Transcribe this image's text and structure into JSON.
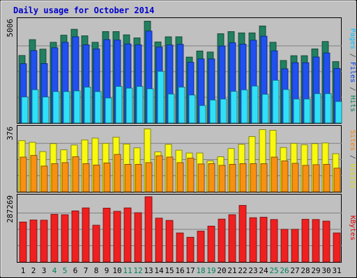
{
  "chart_data": {
    "type": "bar",
    "title": "Daily usage for October 2014",
    "days": [
      "1",
      "2",
      "3",
      "4",
      "5",
      "6",
      "7",
      "8",
      "9",
      "10",
      "11",
      "12",
      "13",
      "14",
      "15",
      "16",
      "17",
      "18",
      "19",
      "20",
      "21",
      "22",
      "23",
      "24",
      "25",
      "26",
      "27",
      "28",
      "29",
      "30",
      "31"
    ],
    "weekend_days": [
      "4",
      "5",
      "11",
      "12",
      "18",
      "19",
      "25",
      "26"
    ],
    "panels": [
      {
        "id": "top",
        "max_label": "5006",
        "ymax": 5006,
        "axis_labels": [
          {
            "text": "Pages",
            "color": "#00c0ff"
          },
          {
            "text": " / ",
            "color": "#404040"
          },
          {
            "text": "Files",
            "color": "#0040f0"
          },
          {
            "text": " / ",
            "color": "#404040"
          },
          {
            "text": "Hits",
            "color": "#00805c"
          }
        ],
        "series": [
          {
            "name": "Hits",
            "color": "#208060",
            "values": [
              3288,
              4058,
              3594,
              3930,
              4276,
              4564,
              4246,
              3930,
              4452,
              4452,
              4292,
              4142,
              4960,
              3948,
              4196,
              4196,
              3210,
              3508,
              3458,
              4346,
              4452,
              4386,
              4386,
              4724,
              3930,
              3044,
              3278,
              3278,
              3610,
              3966,
              2990
            ]
          },
          {
            "name": "Files",
            "color": "#2050f0",
            "values": [
              2884,
              3524,
              2896,
              3660,
              3928,
              4196,
              3806,
              3608,
              4060,
              4040,
              3848,
              3808,
              4476,
              3696,
              3798,
              3830,
              2956,
              3118,
              3118,
              3748,
              3908,
              3838,
              4028,
              4226,
              3514,
              2638,
              2936,
              2936,
              3214,
              3410,
              2658
            ]
          },
          {
            "name": "Pages",
            "color": "#30e0f8",
            "values": [
              1266,
              1620,
              1266,
              1528,
              1528,
              1562,
              1746,
              1528,
              1216,
              1778,
              1696,
              1778,
              1664,
              2512,
              1410,
              1746,
              1360,
              848,
              1118,
              1168,
              1542,
              1612,
              1796,
              1396,
              2080,
              1626,
              1168,
              1168,
              1426,
              1426,
              1046
            ]
          }
        ]
      },
      {
        "id": "middle",
        "max_label": "376",
        "ymax": 376,
        "axis_labels": [
          {
            "text": "Sites",
            "color": "#ff8000"
          },
          {
            "text": " / ",
            "color": "#404040"
          },
          {
            "text": "Visits",
            "color": "#e0e000"
          }
        ],
        "series": [
          {
            "name": "Visits",
            "color": "#f8f810",
            "values": [
              298,
              288,
              234,
              280,
              244,
              272,
              302,
              312,
              282,
              318,
              278,
              256,
              366,
              232,
              276,
              242,
              226,
              226,
              180,
              204,
              252,
              276,
              322,
              362,
              358,
              258,
              282,
              274,
              280,
              284,
              222
            ]
          },
          {
            "name": "Sites",
            "color": "#f89010",
            "values": [
              202,
              212,
              150,
              164,
              170,
              204,
              164,
              156,
              168,
              218,
              160,
              160,
              170,
              210,
              202,
              170,
              196,
              162,
              164,
              154,
              160,
              164,
              164,
              164,
              202,
              180,
              166,
              154,
              158,
              160,
              138
            ]
          }
        ]
      },
      {
        "id": "bottom",
        "max_label": "287269",
        "ymax": 287269,
        "axis_labels": [
          {
            "text": "KBytes",
            "color": "#e00000"
          }
        ],
        "series": [
          {
            "name": "KBytes",
            "color": "#f02020",
            "values": [
              176000,
              185000,
              184000,
              210000,
              208000,
              225000,
              238000,
              162000,
              237000,
              223000,
              238000,
              217000,
              287269,
              193000,
              183000,
              128000,
              109000,
              136000,
              158000,
              189000,
              208000,
              249000,
              195000,
              197000,
              187000,
              144000,
              144000,
              188000,
              187000,
              180000,
              128000
            ]
          }
        ]
      }
    ]
  }
}
